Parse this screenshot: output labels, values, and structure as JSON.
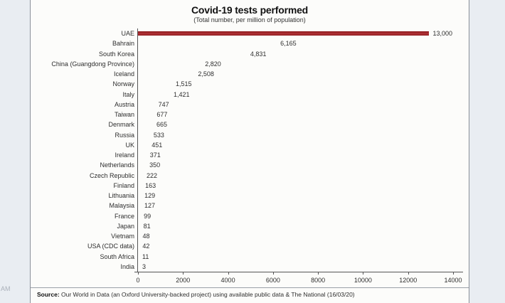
{
  "page": {
    "watermark": "AM"
  },
  "header": {
    "title": "Covid-19 tests performed",
    "subtitle": "(Total number, per million of population)"
  },
  "footer": {
    "source_label": "Source:",
    "source_text": " Our World in Data (an Oxford University-backed project) using available public data & The National  (16/03/20)"
  },
  "chart_data": {
    "type": "bar",
    "orientation": "horizontal",
    "title": "Covid-19 tests performed",
    "subtitle": "(Total number, per million of population)",
    "xlabel": "",
    "ylabel": "",
    "xlim": [
      0,
      14000
    ],
    "xticks": [
      0,
      2000,
      4000,
      6000,
      8000,
      10000,
      12000,
      14000
    ],
    "xtick_labels": [
      "0",
      "2000",
      "4000",
      "6000",
      "8000",
      "10000",
      "12000",
      "14000"
    ],
    "grid": false,
    "legend": false,
    "categories": [
      "UAE",
      "Bahrain",
      "South Korea",
      "China (Guangdong Province)",
      "Iceland",
      "Norway",
      "Italy",
      "Austria",
      "Taiwan",
      "Denmark",
      "Russia",
      "UK",
      "Ireland",
      "Netherlands",
      "Czech Republic",
      "Finland",
      "Lithuania",
      "Malaysia",
      "France",
      "Japan",
      "Vietnam",
      "USA (CDC data)",
      "South Africa",
      "India"
    ],
    "values": [
      13000,
      6165,
      4831,
      2820,
      2508,
      1515,
      1421,
      747,
      677,
      665,
      533,
      451,
      371,
      350,
      222,
      163,
      129,
      127,
      99,
      81,
      48,
      42,
      11,
      3
    ],
    "value_labels": [
      "13,000",
      "6,165",
      "4,831",
      "2,820",
      "2,508",
      "1,515",
      "1,421",
      "747",
      "677",
      "665",
      "533",
      "451",
      "371",
      "350",
      "222",
      "163",
      "129",
      "127",
      "99",
      "81",
      "48",
      "42",
      "11",
      "3"
    ],
    "bar_color_default": "#6d9cc0",
    "bar_color_highlight": "#8e191c",
    "highlight_index": 0
  }
}
